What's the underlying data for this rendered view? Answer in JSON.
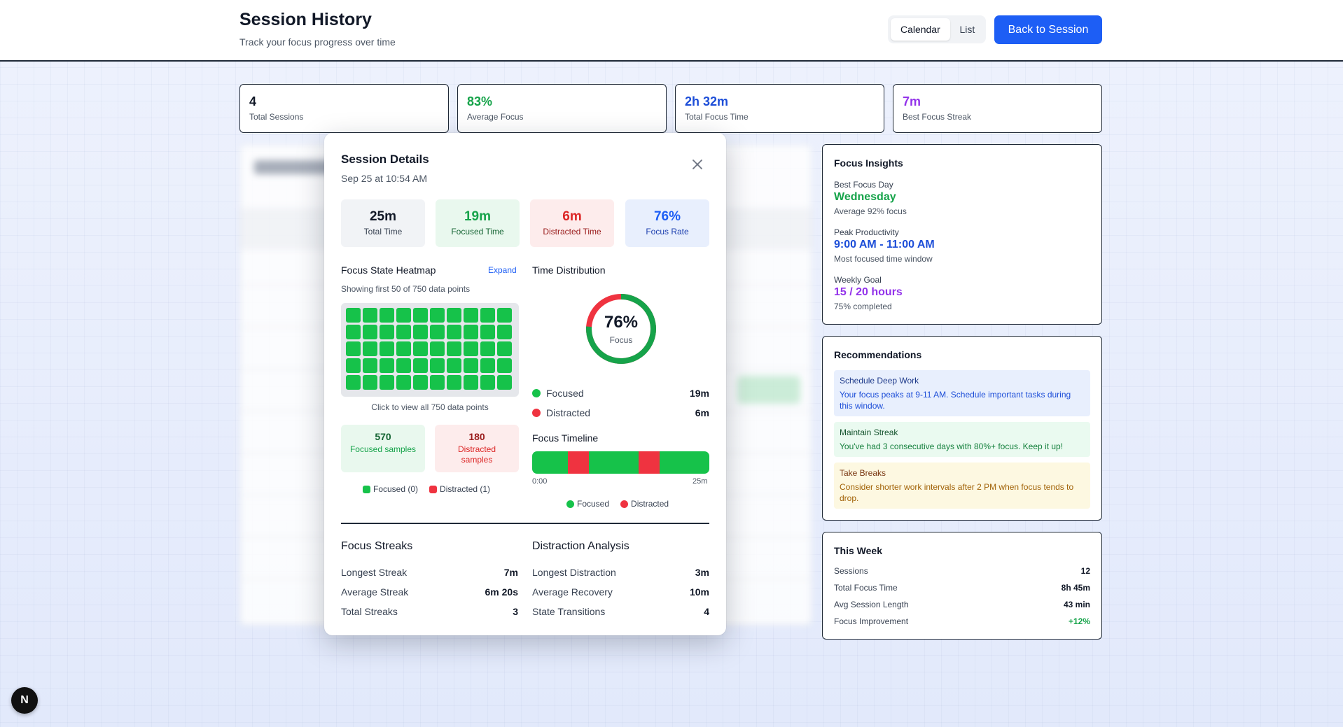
{
  "header": {
    "title": "Session History",
    "subtitle": "Track your focus progress over time",
    "view_toggle": [
      "Calendar",
      "List"
    ],
    "active_view": "Calendar",
    "back_button": "Back to Session"
  },
  "stats": [
    {
      "value": "4",
      "label": "Total Sessions",
      "color": "#111827"
    },
    {
      "value": "83%",
      "label": "Average Focus",
      "color": "#16a34a"
    },
    {
      "value": "2h 32m",
      "label": "Total Focus Time",
      "color": "#1d4ed8"
    },
    {
      "value": "7m",
      "label": "Best Focus Streak",
      "color": "#9333ea"
    }
  ],
  "modal": {
    "title": "Session Details",
    "date": "Sep 25 at 10:54 AM",
    "metrics": [
      {
        "value": "25m",
        "label": "Total Time"
      },
      {
        "value": "19m",
        "label": "Focused Time"
      },
      {
        "value": "6m",
        "label": "Distracted Time"
      },
      {
        "value": "76%",
        "label": "Focus Rate"
      }
    ],
    "heatmap": {
      "title": "Focus State Heatmap",
      "expand": "Expand",
      "note": "Showing first 50 of 750 data points",
      "caption": "Click to view all 750 data points",
      "cells_shown": 50,
      "cell_state": "focused",
      "focused_samples": "570",
      "focused_samples_label": "Focused samples",
      "distracted_samples": "180",
      "distracted_samples_label": "Distracted samples",
      "legend_focused": "Focused (0)",
      "legend_distracted": "Distracted (1)"
    },
    "distribution": {
      "title": "Time Distribution",
      "percent": "76%",
      "percent_value": 0.76,
      "center_label": "Focus",
      "focused_label": "Focused",
      "focused_value": "19m",
      "distracted_label": "Distracted",
      "distracted_value": "6m"
    },
    "timeline": {
      "title": "Focus Timeline",
      "start": "0:00",
      "end": "25m",
      "distracted_segments": [
        [
          0.2,
          0.32
        ],
        [
          0.6,
          0.72
        ]
      ],
      "legend_focused": "Focused",
      "legend_distracted": "Distracted"
    },
    "streaks": {
      "title": "Focus Streaks",
      "rows": [
        {
          "label": "Longest Streak",
          "value": "7m"
        },
        {
          "label": "Average Streak",
          "value": "6m 20s"
        },
        {
          "label": "Total Streaks",
          "value": "3"
        }
      ]
    },
    "distraction": {
      "title": "Distraction Analysis",
      "rows": [
        {
          "label": "Longest Distraction",
          "value": "3m"
        },
        {
          "label": "Average Recovery",
          "value": "10m"
        },
        {
          "label": "State Transitions",
          "value": "4"
        }
      ]
    }
  },
  "insights": {
    "title": "Focus Insights",
    "items": [
      {
        "label": "Best Focus Day",
        "value": "Wednesday",
        "sub": "Average 92% focus",
        "color": "#16a34a"
      },
      {
        "label": "Peak Productivity",
        "value": "9:00 AM - 11:00 AM",
        "sub": "Most focused time window",
        "color": "#1d4ed8"
      },
      {
        "label": "Weekly Goal",
        "value": "15 / 20 hours",
        "sub": "75% completed",
        "color": "#9333ea"
      }
    ]
  },
  "recommendations": {
    "title": "Recommendations",
    "items": [
      {
        "title": "Schedule Deep Work",
        "desc": "Your focus peaks at 9-11 AM. Schedule important tasks during this window.",
        "bg": "#e8effd",
        "color": "#1e40af"
      },
      {
        "title": "Maintain Streak",
        "desc": "You've had 3 consecutive days with 80%+ focus. Keep it up!",
        "bg": "#eafaf0",
        "color": "#166534"
      },
      {
        "title": "Take Breaks",
        "desc": "Consider shorter work intervals after 2 PM when focus tends to drop.",
        "bg": "#fdf8e1",
        "color": "#92400e"
      }
    ]
  },
  "week": {
    "title": "This Week",
    "rows": [
      {
        "label": "Sessions",
        "value": "12"
      },
      {
        "label": "Total Focus Time",
        "value": "8h 45m"
      },
      {
        "label": "Avg Session Length",
        "value": "43 min"
      },
      {
        "label": "Focus Improvement",
        "value": "+12%"
      }
    ]
  },
  "dev_badge": "N",
  "colors": {
    "focused": "#16c24a",
    "distracted": "#ef3340",
    "accent": "#1d5ef5"
  }
}
